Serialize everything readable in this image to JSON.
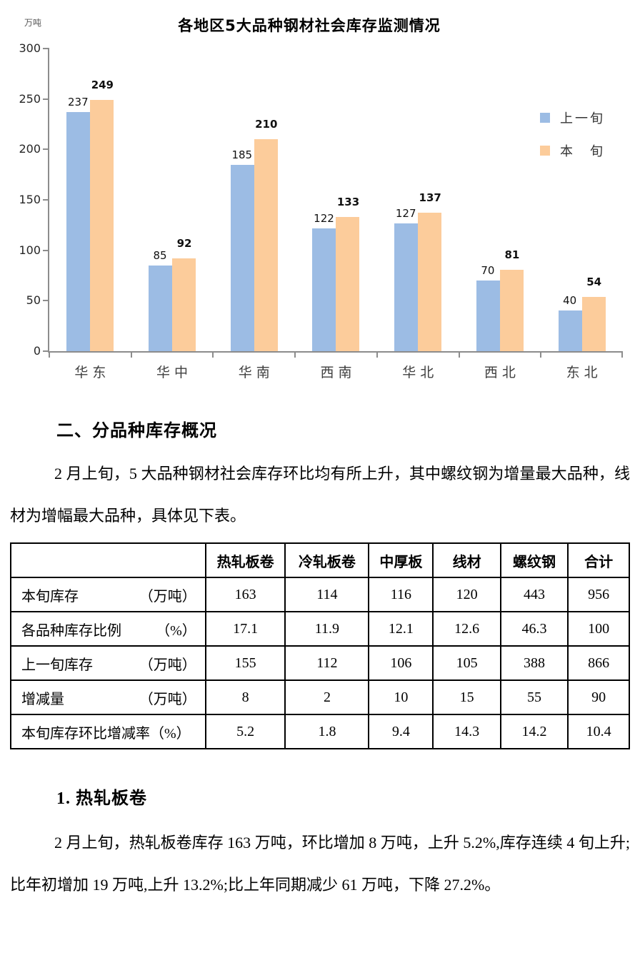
{
  "chart_data": {
    "type": "bar",
    "title": "各地区5大品种钢材社会库存监测情况",
    "ylabel": "万吨",
    "xlabel": "",
    "ylim": [
      0,
      300
    ],
    "yticks": [
      0,
      50,
      100,
      150,
      200,
      250,
      300
    ],
    "grid": false,
    "legend_position": "right",
    "axis_color": "#8c8c8c",
    "categories": [
      "华东",
      "华中",
      "华南",
      "西南",
      "华北",
      "西北",
      "东北"
    ],
    "series": [
      {
        "name": "上一旬",
        "color": "#9CBCE4",
        "values": [
          237,
          85,
          185,
          122,
          127,
          70,
          40
        ]
      },
      {
        "name": "本　旬",
        "color": "#FCCC9B",
        "values": [
          249,
          92,
          210,
          133,
          137,
          81,
          54
        ]
      }
    ]
  },
  "sections": {
    "heading_overview": "二、分品种库存概况",
    "para_overview": "2 月上旬，5 大品种钢材社会库存环比均有所上升，其中螺纹钢为增量最大品种，线材为增幅最大品种，具体见下表。",
    "heading_hot_rolled": "1. 热轧板卷",
    "para_hot_rolled": "2 月上旬，热轧板卷库存 163 万吨，环比增加 8 万吨，上升 5.2%,库存连续 4 旬上升;比年初增加 19 万吨,上升 13.2%;比上年同期减少 61 万吨，下降 27.2%。"
  },
  "table": {
    "columns": [
      "",
      "热轧板卷",
      "冷轧板卷",
      "中厚板",
      "线材",
      "螺纹钢",
      "合计"
    ],
    "rows": [
      {
        "label": "本旬库存",
        "unit": "（万吨）",
        "values": [
          "163",
          "114",
          "116",
          "120",
          "443",
          "956"
        ]
      },
      {
        "label": "各品种库存比例",
        "unit": "（%）",
        "values": [
          "17.1",
          "11.9",
          "12.1",
          "12.6",
          "46.3",
          "100"
        ]
      },
      {
        "label": "上一旬库存",
        "unit": "（万吨）",
        "values": [
          "155",
          "112",
          "106",
          "105",
          "388",
          "866"
        ]
      },
      {
        "label": "增减量",
        "unit": "（万吨）",
        "values": [
          "8",
          "2",
          "10",
          "15",
          "55",
          "90"
        ]
      },
      {
        "label": "本旬库存环比增减率（%）",
        "unit": "",
        "values": [
          "5.2",
          "1.8",
          "9.4",
          "14.3",
          "14.2",
          "10.4"
        ]
      }
    ],
    "column_widths": [
      "31.5%",
      "12.9%",
      "13.5%",
      "10.4%",
      "10.9%",
      "10.9%",
      "9.9%"
    ]
  }
}
